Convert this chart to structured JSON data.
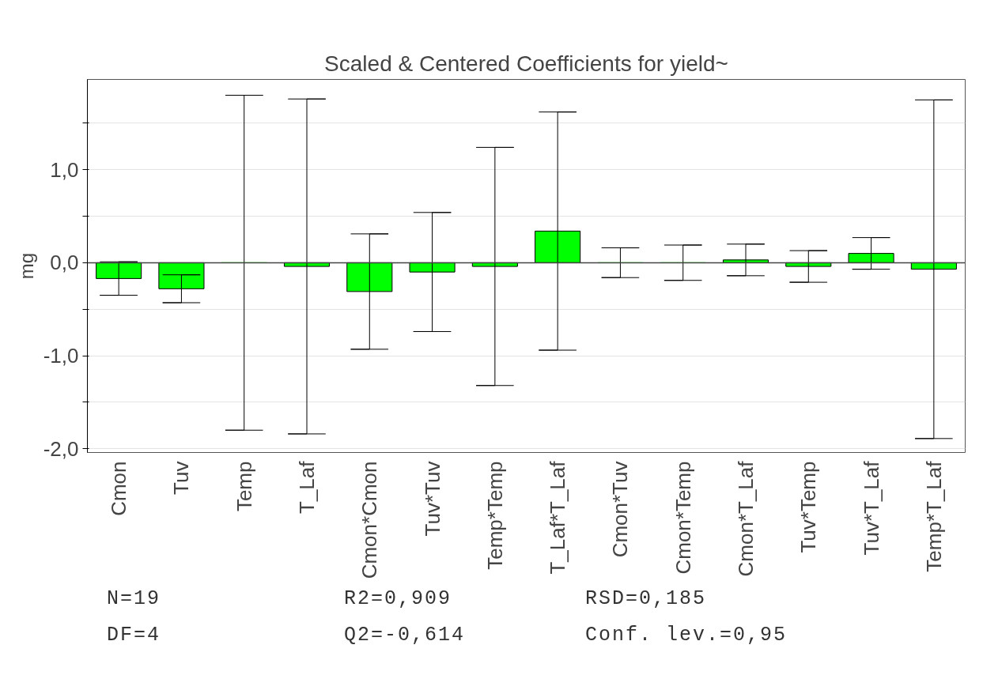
{
  "chart_data": {
    "type": "bar",
    "title": "Scaled & Centered Coefficients for yield~",
    "ylabel": "mg",
    "categories": [
      "Cmon",
      "Tuv",
      "Temp",
      "T_Laf",
      "Cmon*Cmon",
      "Tuv*Tuv",
      "Temp*Temp",
      "T_Laf*T_Laf",
      "Cmon*Tuv",
      "Cmon*Temp",
      "Cmon*T_Laf",
      "Tuv*Temp",
      "Tuv*T_Laf",
      "Temp*T_Laf"
    ],
    "values": [
      -0.17,
      -0.28,
      0,
      -0.04,
      -0.31,
      -0.1,
      -0.04,
      0.34,
      0,
      0,
      0.03,
      -0.04,
      0.1,
      -0.07
    ],
    "errors": [
      0.18,
      0.15,
      1.8,
      1.8,
      0.62,
      0.64,
      1.28,
      1.28,
      0.16,
      0.19,
      0.17,
      0.17,
      0.17,
      1.82
    ],
    "color": "#00ff00",
    "ylim": [
      -2.04,
      1.97
    ],
    "yticks": [
      {
        "value": -2,
        "label": "-2,0"
      },
      {
        "value": -1.5,
        "label": null
      },
      {
        "value": -1,
        "label": "-1,0"
      },
      {
        "value": -0.5,
        "label": null
      },
      {
        "value": 0,
        "label": "0,0"
      },
      {
        "value": 0.5,
        "label": null
      },
      {
        "value": 1,
        "label": "1,0"
      },
      {
        "value": 1.5,
        "label": null
      }
    ],
    "ref_lines": [
      {
        "axis": "y",
        "value": 0,
        "label": null,
        "color": "#444444"
      }
    ],
    "grid": "y",
    "annotations": [
      "N=19",
      "R2=0,909",
      "RSD=0,185",
      "DF=4",
      "Q2=-0,614",
      "Conf. lev.=0,95"
    ]
  }
}
